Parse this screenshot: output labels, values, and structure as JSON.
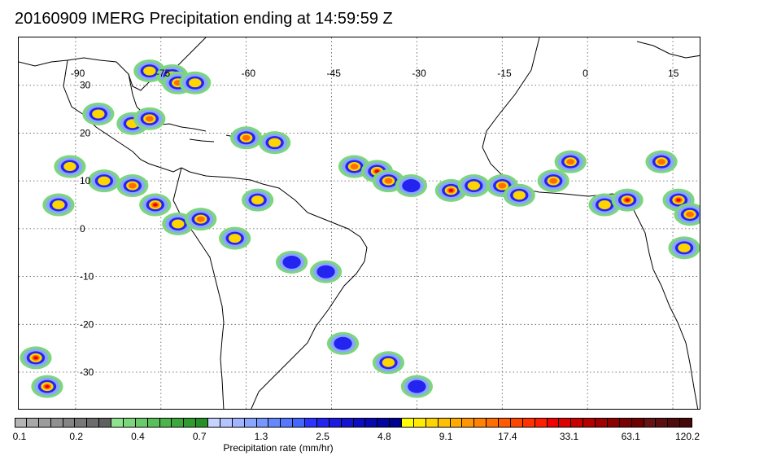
{
  "title": "20160909 IMERG Precipitation ending at 14:59:59 Z",
  "map": {
    "lon_range": [
      -100,
      20
    ],
    "lat_range": [
      -38,
      40
    ],
    "lon_ticks": [
      {
        "value": -90,
        "label": "-90"
      },
      {
        "value": -75,
        "label": "-75"
      },
      {
        "value": -60,
        "label": "-60"
      },
      {
        "value": -45,
        "label": "-45"
      },
      {
        "value": -30,
        "label": "-30"
      },
      {
        "value": -15,
        "label": "-15"
      },
      {
        "value": 0,
        "label": "0"
      },
      {
        "value": 15,
        "label": "15"
      }
    ],
    "lat_ticks": [
      {
        "value": 30,
        "label": "30"
      },
      {
        "value": 20,
        "label": "20"
      },
      {
        "value": 10,
        "label": "10"
      },
      {
        "value": 0,
        "label": "0"
      },
      {
        "value": -10,
        "label": "-10"
      },
      {
        "value": -20,
        "label": "-20"
      },
      {
        "value": -30,
        "label": "-30"
      }
    ],
    "grid": "dotted"
  },
  "colorbar": {
    "title": "Precipitation rate (mm/hr)",
    "colors": [
      "#b4b4b4",
      "#a8a8a8",
      "#9c9c9c",
      "#909090",
      "#848484",
      "#787878",
      "#6c6c6c",
      "#606060",
      "#8ee28e",
      "#7cd67c",
      "#6acb6a",
      "#58c058",
      "#4ab54a",
      "#3ca83c",
      "#309c30",
      "#269026",
      "#c8d2ff",
      "#b4c4ff",
      "#a0b4ff",
      "#8ca6ff",
      "#7896ff",
      "#6688ff",
      "#5478ff",
      "#4468ff",
      "#2c34ff",
      "#2424f0",
      "#1c1ce0",
      "#1414d0",
      "#0c0cc0",
      "#0808b0",
      "#0404a0",
      "#000090",
      "#ffff00",
      "#ffea00",
      "#ffd500",
      "#ffc000",
      "#ffab00",
      "#ff9600",
      "#ff8200",
      "#ff6e00",
      "#ff5a00",
      "#ff4600",
      "#ff3200",
      "#ff1e00",
      "#f00000",
      "#dc0000",
      "#c80000",
      "#b40000",
      "#a00000",
      "#8c0000",
      "#780000",
      "#6e0000",
      "#641414",
      "#5a1010",
      "#500c0c",
      "#460808"
    ],
    "labels": [
      "0.1",
      "0.2",
      "0.4",
      "0.7",
      "1.3",
      "2.5",
      "4.8",
      "9.1",
      "17.4",
      "33.1",
      "63.1",
      "120.2"
    ]
  },
  "precip_cells": [
    {
      "lon": -77,
      "lat": 33,
      "level": 3
    },
    {
      "lon": -73,
      "lat": 32,
      "level": 5
    },
    {
      "lon": -72,
      "lat": 30.5,
      "level": 4
    },
    {
      "lon": -69,
      "lat": 30.5,
      "level": 3
    },
    {
      "lon": -86,
      "lat": 24,
      "level": 3
    },
    {
      "lon": -80,
      "lat": 22,
      "level": 3
    },
    {
      "lon": -77,
      "lat": 23,
      "level": 4
    },
    {
      "lon": -60,
      "lat": 19,
      "level": 4
    },
    {
      "lon": -55,
      "lat": 18,
      "level": 3
    },
    {
      "lon": -91,
      "lat": 13,
      "level": 3
    },
    {
      "lon": -85,
      "lat": 10,
      "level": 3
    },
    {
      "lon": -80,
      "lat": 9,
      "level": 4
    },
    {
      "lon": -76,
      "lat": 5,
      "level": 5
    },
    {
      "lon": -93,
      "lat": 5,
      "level": 3
    },
    {
      "lon": -72,
      "lat": 1,
      "level": 3
    },
    {
      "lon": -68,
      "lat": 2,
      "level": 4
    },
    {
      "lon": -62,
      "lat": -2,
      "level": 3
    },
    {
      "lon": -58,
      "lat": 6,
      "level": 3
    },
    {
      "lon": -52,
      "lat": -7,
      "level": 2
    },
    {
      "lon": -41,
      "lat": 13,
      "level": 4
    },
    {
      "lon": -37,
      "lat": 12,
      "level": 5
    },
    {
      "lon": -35,
      "lat": 10,
      "level": 4
    },
    {
      "lon": -31,
      "lat": 9,
      "level": 2
    },
    {
      "lon": -24,
      "lat": 8,
      "level": 5
    },
    {
      "lon": -20,
      "lat": 9,
      "level": 3
    },
    {
      "lon": -15,
      "lat": 9,
      "level": 4
    },
    {
      "lon": -12,
      "lat": 7,
      "level": 3
    },
    {
      "lon": -6,
      "lat": 10,
      "level": 4
    },
    {
      "lon": -3,
      "lat": 14,
      "level": 4
    },
    {
      "lon": 3,
      "lat": 5,
      "level": 3
    },
    {
      "lon": 7,
      "lat": 6,
      "level": 5
    },
    {
      "lon": 13,
      "lat": 14,
      "level": 4
    },
    {
      "lon": 16,
      "lat": 6,
      "level": 5
    },
    {
      "lon": 18,
      "lat": 3,
      "level": 4
    },
    {
      "lon": 17,
      "lat": -4,
      "level": 3
    },
    {
      "lon": -97,
      "lat": -27,
      "level": 5
    },
    {
      "lon": -95,
      "lat": -33,
      "level": 5
    },
    {
      "lon": -43,
      "lat": -24,
      "level": 2
    },
    {
      "lon": -35,
      "lat": -28,
      "level": 3
    },
    {
      "lon": -30,
      "lat": -33,
      "level": 2
    },
    {
      "lon": -46,
      "lat": -9,
      "level": 2
    }
  ]
}
